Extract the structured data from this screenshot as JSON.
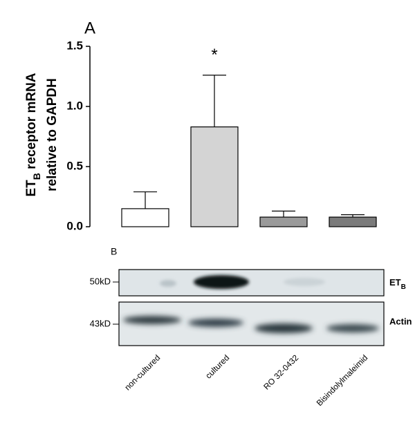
{
  "chart_data": {
    "type": "bar",
    "panel": "A",
    "ylabel_parts": [
      "ET",
      "B",
      " receptor mRNA"
    ],
    "ylabel_line2": "relative to GAPDH",
    "categories": [
      "non-cultured",
      "cultured",
      "RO 32-0432",
      "Bisindolylmaleimid"
    ],
    "values": [
      0.15,
      0.83,
      0.08,
      0.08
    ],
    "errors": [
      0.14,
      0.43,
      0.05,
      0.02
    ],
    "colors": [
      "#ffffff",
      "#d4d4d4",
      "#9a9a9a",
      "#7b7b7b"
    ],
    "annotations": [
      {
        "category": 1,
        "text": "*"
      }
    ],
    "ylim": [
      0,
      1.5
    ],
    "yticks": [
      {
        "value": 0,
        "label": "0.0"
      },
      {
        "value": 0.5,
        "label": "0.5"
      },
      {
        "value": 1,
        "label": "1.0"
      },
      {
        "value": 1.5,
        "label": "1.5"
      }
    ]
  },
  "blot": {
    "panel": "B",
    "markers": [
      "50kD",
      "43kD"
    ],
    "row1": [
      "ET",
      "B"
    ],
    "row2": "Actin"
  }
}
